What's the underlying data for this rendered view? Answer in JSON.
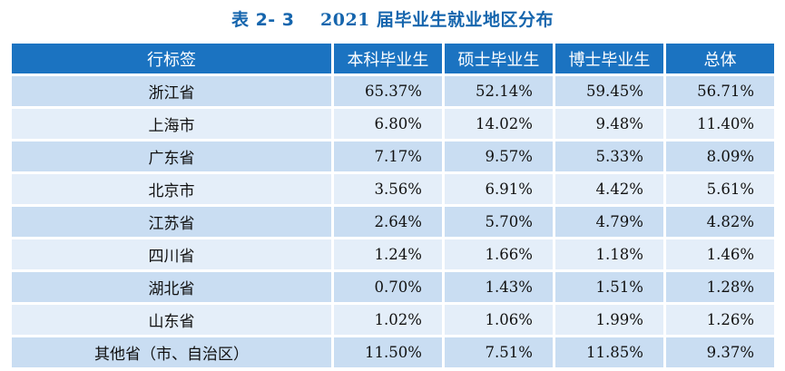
{
  "caption": {
    "number": "表 2- 3",
    "year": "2021",
    "title": "届毕业生就业地区分布"
  },
  "table": {
    "headers": [
      "行标签",
      "本科毕业生",
      "硕士毕业生",
      "博士毕业生",
      "总体"
    ],
    "rows": [
      [
        "浙江省",
        "65.37%",
        "52.14%",
        "59.45%",
        "56.71%"
      ],
      [
        "上海市",
        "6.80%",
        "14.02%",
        "9.48%",
        "11.40%"
      ],
      [
        "广东省",
        "7.17%",
        "9.57%",
        "5.33%",
        "8.09%"
      ],
      [
        "北京市",
        "3.56%",
        "6.91%",
        "4.42%",
        "5.61%"
      ],
      [
        "江苏省",
        "2.64%",
        "5.70%",
        "4.79%",
        "4.82%"
      ],
      [
        "四川省",
        "1.24%",
        "1.66%",
        "1.18%",
        "1.46%"
      ],
      [
        "湖北省",
        "0.70%",
        "1.43%",
        "1.51%",
        "1.28%"
      ],
      [
        "山东省",
        "1.02%",
        "1.06%",
        "1.99%",
        "1.26%"
      ],
      [
        "其他省（市、自治区）",
        "11.50%",
        "7.51%",
        "11.85%",
        "9.37%"
      ]
    ]
  },
  "colors": {
    "caption": "#1565ad",
    "header_bg": "#1b73c1",
    "row_dark": "#c9ddf2",
    "row_light": "#e4eef9"
  }
}
